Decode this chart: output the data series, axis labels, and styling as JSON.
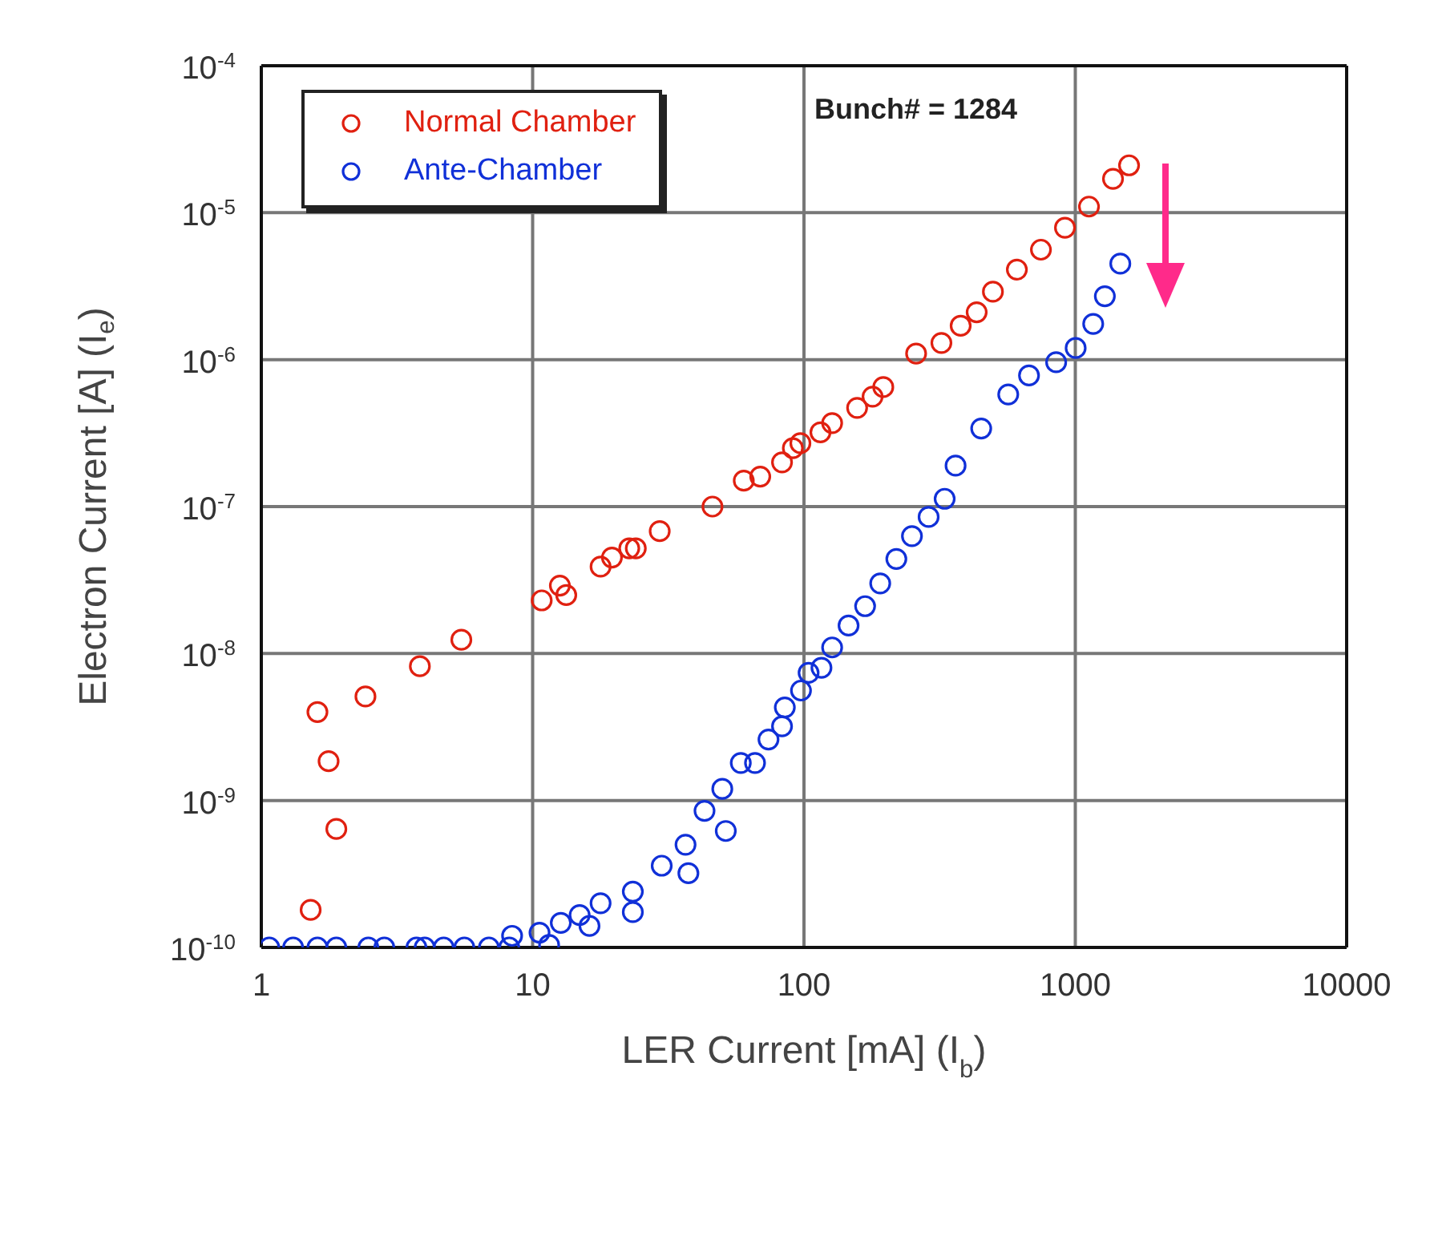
{
  "chart_data": {
    "type": "scatter",
    "xlabel": "LER Current [mA] (I$_{b}$)",
    "ylabel": "Electron Current [A] (I$_{e}$)",
    "log": "xy",
    "xlim": [
      1,
      10000
    ],
    "xticks": [
      1,
      10,
      100,
      1000,
      10000
    ],
    "ylim": [
      1e-10,
      0.0001
    ],
    "yticks": [
      {
        "value": 1e-10,
        "label": "10$^{-10}$"
      },
      {
        "value": 1e-09,
        "label": "10$^{-9}$"
      },
      {
        "value": 1e-08,
        "label": "10$^{-8}$"
      },
      {
        "value": 1e-07,
        "label": "10$^{-7}$"
      },
      {
        "value": 1e-06,
        "label": "10$^{-6}$"
      },
      {
        "value": 1e-05,
        "label": "10$^{-5}$"
      },
      {
        "value": 0.0001,
        "label": "10$^{-4}$"
      }
    ],
    "grid": true,
    "legend": "top left",
    "marker": "circle",
    "annotations": [
      "Bunch# = 1284"
    ],
    "series": [
      {
        "name": "Normal Chamber",
        "color": "#e02010",
        "x": [
          1.52,
          1.61,
          1.77,
          1.89,
          2.42,
          3.84,
          5.46,
          10.8,
          12.6,
          13.3,
          17.8,
          19.6,
          22.7,
          24,
          29.4,
          46,
          60,
          69,
          83,
          91,
          97,
          115,
          127,
          157,
          179,
          196,
          259,
          321,
          378,
          433,
          497,
          609,
          747,
          916,
          1123,
          1377,
          1578
        ],
        "values": [
          1.8e-10,
          4e-09,
          1.85e-09,
          6.4e-10,
          5.1e-09,
          8.2e-09,
          1.24e-08,
          2.3e-08,
          2.9e-08,
          2.5e-08,
          3.9e-08,
          4.5e-08,
          5.2e-08,
          5.2e-08,
          6.8e-08,
          1e-07,
          1.5e-07,
          1.6e-07,
          2e-07,
          2.5e-07,
          2.7e-07,
          3.2e-07,
          3.7e-07,
          4.7e-07,
          5.6e-07,
          6.5e-07,
          1.1e-06,
          1.3e-06,
          1.7e-06,
          2.1e-06,
          2.9e-06,
          4.1e-06,
          5.6e-06,
          7.9e-06,
          1.1e-05,
          1.7e-05,
          2.1e-05
        ]
      },
      {
        "name": "Ante-Chamber",
        "color": "#1030d8",
        "x": [
          1.07,
          1.31,
          1.61,
          1.89,
          2.48,
          2.84,
          3.73,
          4,
          4.7,
          5.6,
          6.9,
          8.2,
          8.4,
          10.6,
          11.5,
          12.7,
          14.9,
          16.2,
          17.8,
          23.4,
          23.4,
          29.9,
          36.6,
          37.5,
          43,
          50,
          51.5,
          58.5,
          66,
          74,
          83,
          85,
          97.5,
          104,
          116,
          127,
          146,
          168,
          191,
          219,
          250,
          288,
          330,
          362,
          450,
          566,
          675,
          850,
          1003,
          1164,
          1285,
          1465
        ],
        "values": [
          1e-10,
          1e-10,
          1e-10,
          1e-10,
          1e-10,
          1e-10,
          1e-10,
          1e-10,
          1e-10,
          1e-10,
          1e-10,
          1e-10,
          1.2e-10,
          1.26e-10,
          1.04e-10,
          1.47e-10,
          1.66e-10,
          1.4e-10,
          2e-10,
          2.4e-10,
          1.74e-10,
          3.6e-10,
          5e-10,
          3.2e-10,
          8.5e-10,
          1.2e-09,
          6.2e-10,
          1.8e-09,
          1.8e-09,
          2.6e-09,
          3.2e-09,
          4.3e-09,
          5.6e-09,
          7.4e-09,
          8e-09,
          1.1e-08,
          1.55e-08,
          2.1e-08,
          3e-08,
          4.4e-08,
          6.3e-08,
          8.5e-08,
          1.13e-07,
          1.9e-07,
          3.4e-07,
          5.8e-07,
          7.8e-07,
          9.6e-07,
          1.2e-06,
          1.75e-06,
          2.7e-06,
          4.5e-06
        ]
      }
    ]
  }
}
